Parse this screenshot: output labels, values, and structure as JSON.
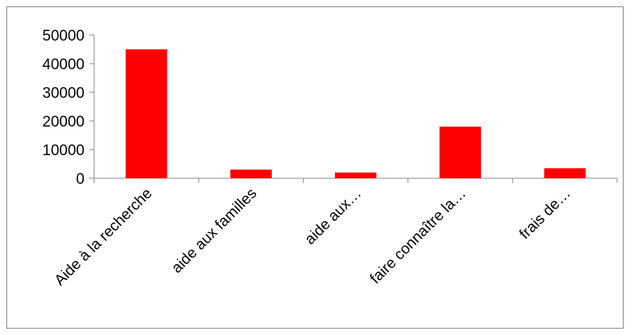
{
  "chart_data": {
    "type": "bar",
    "title": "",
    "xlabel": "",
    "ylabel": "",
    "categories": [
      "Aide à la recherche",
      "aide aux familles",
      "aide aux…",
      "faire connaître la…",
      "frais de…"
    ],
    "values": [
      45000,
      3000,
      2000,
      18000,
      3500
    ],
    "ylim": [
      0,
      50000
    ],
    "yticks": [
      "0",
      "10000",
      "20000",
      "30000",
      "40000",
      "50000"
    ],
    "bar_color": "#ff0000",
    "grid": false,
    "legend": "none"
  }
}
